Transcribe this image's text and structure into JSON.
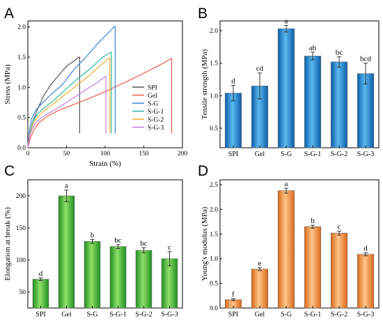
{
  "chart_data": [
    {
      "panel": "A",
      "type": "line",
      "xlabel": "Strain (%)",
      "ylabel": "Stress (MPa)",
      "xlim": [
        0,
        200
      ],
      "ylim": [
        0,
        2.1
      ],
      "xticks": [
        "0",
        "50",
        "100",
        "150",
        "200"
      ],
      "yticks": [
        "0.0",
        "0.5",
        "1.0",
        "1.5",
        "2.0"
      ],
      "legend_position": "bottom-right",
      "series": [
        {
          "name": "SPI",
          "color": "#555555",
          "x": [
            0,
            2,
            6,
            12,
            20,
            30,
            40,
            50,
            58,
            63,
            66,
            67,
            67
          ],
          "y": [
            0,
            0.2,
            0.42,
            0.62,
            0.85,
            1.05,
            1.2,
            1.35,
            1.42,
            1.47,
            1.5,
            1.5,
            0.24
          ]
        },
        {
          "name": "Gel",
          "color": "#f05a4a",
          "x": [
            0,
            3,
            8,
            15,
            25,
            40,
            60,
            80,
            100,
            120,
            140,
            160,
            175,
            183,
            186,
            186
          ],
          "y": [
            0,
            0.15,
            0.3,
            0.42,
            0.52,
            0.62,
            0.72,
            0.82,
            0.93,
            1.05,
            1.17,
            1.3,
            1.4,
            1.46,
            1.48,
            0.24
          ]
        },
        {
          "name": "S-G",
          "color": "#3a86d8",
          "x": [
            0,
            2,
            5,
            10,
            20,
            30,
            45,
            60,
            75,
            90,
            100,
            108,
            112,
            113,
            113
          ],
          "y": [
            0,
            0.28,
            0.48,
            0.62,
            0.76,
            0.88,
            1.05,
            1.3,
            1.5,
            1.72,
            1.85,
            1.95,
            2.01,
            2.01,
            0.24
          ]
        },
        {
          "name": "S-G-1",
          "color": "#2bb7a0",
          "x": [
            0,
            2,
            6,
            12,
            20,
            35,
            50,
            65,
            80,
            95,
            103,
            107,
            108,
            108
          ],
          "y": [
            0,
            0.22,
            0.42,
            0.55,
            0.65,
            0.8,
            0.98,
            1.15,
            1.3,
            1.48,
            1.55,
            1.58,
            1.58,
            0.24
          ]
        },
        {
          "name": "S-G-2",
          "color": "#f0b230",
          "x": [
            0,
            2,
            6,
            12,
            20,
            35,
            50,
            65,
            80,
            95,
            102,
            105,
            106,
            106
          ],
          "y": [
            0,
            0.2,
            0.38,
            0.5,
            0.6,
            0.75,
            0.9,
            1.05,
            1.2,
            1.38,
            1.45,
            1.48,
            1.49,
            0.24
          ]
        },
        {
          "name": "S-G-3",
          "color": "#c07ce6",
          "x": [
            0,
            2,
            6,
            12,
            20,
            35,
            50,
            65,
            80,
            90,
            96,
            100,
            101,
            101
          ],
          "y": [
            0,
            0.18,
            0.33,
            0.44,
            0.52,
            0.63,
            0.75,
            0.88,
            1.0,
            1.08,
            1.14,
            1.18,
            1.18,
            0.24
          ]
        }
      ]
    },
    {
      "panel": "B",
      "type": "bar",
      "ylabel": "Tensile strength (MPa)",
      "ylim": [
        0.2,
        2.15
      ],
      "yticks": [
        "0.5",
        "1.0",
        "1.5",
        "2.0"
      ],
      "categories": [
        "SPI",
        "Gel",
        "S-G",
        "S-G-1",
        "S-G-2",
        "S-G-3"
      ],
      "values": [
        1.04,
        1.15,
        2.03,
        1.61,
        1.52,
        1.34
      ],
      "errors": [
        0.12,
        0.2,
        0.05,
        0.06,
        0.08,
        0.16
      ],
      "significance": [
        "d",
        "cd",
        "a",
        "ab",
        "bc",
        "bcd"
      ],
      "color": "#1f8fdc"
    },
    {
      "panel": "C",
      "type": "bar",
      "ylabel": "Elongation at break (%)",
      "ylim": [
        25,
        225
      ],
      "yticks": [
        "50",
        "100",
        "150",
        "200"
      ],
      "categories": [
        "SPI",
        "Gel",
        "S-G",
        "S-G-1",
        "S-G-2",
        "S-G-3"
      ],
      "values": [
        70,
        200,
        129,
        121,
        115,
        102
      ],
      "errors": [
        2,
        9,
        3,
        3,
        4,
        11
      ],
      "significance": [
        "d",
        "a",
        "b",
        "bc",
        "bc",
        "c"
      ],
      "color": "#3fbf3f"
    },
    {
      "panel": "D",
      "type": "bar",
      "ylabel": "Young's modulus (MPa)",
      "ylim": [
        0,
        2.6
      ],
      "yticks": [
        "0.0",
        "0.5",
        "1.0",
        "1.5",
        "2.0",
        "2.5"
      ],
      "categories": [
        "SPI",
        "Gel",
        "S-G",
        "S-G-1",
        "S-G-2",
        "S-G-3"
      ],
      "values": [
        0.17,
        0.79,
        2.38,
        1.65,
        1.52,
        1.09
      ],
      "errors": [
        0.02,
        0.03,
        0.05,
        0.03,
        0.04,
        0.03
      ],
      "significance": [
        "f",
        "e",
        "a",
        "b",
        "c",
        "d"
      ],
      "color": "#f5953a"
    }
  ]
}
